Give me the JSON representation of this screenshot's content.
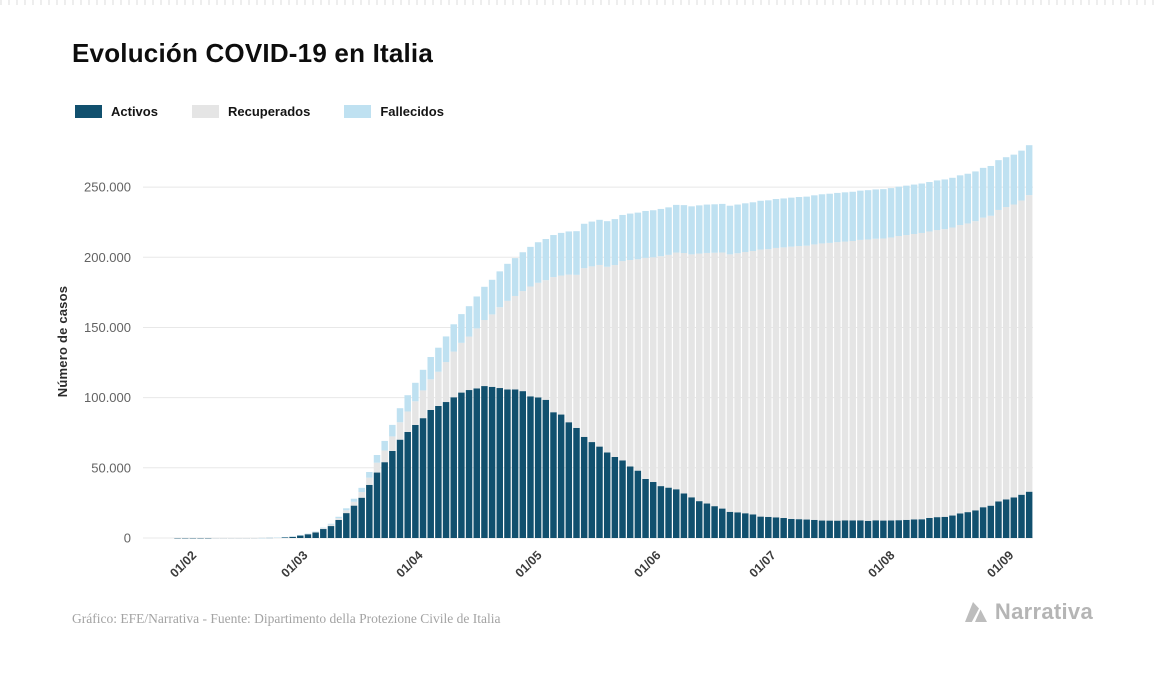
{
  "header": {
    "title": "Evolución COVID-19 en Italia"
  },
  "legend": [
    {
      "label": "Activos",
      "color": "#11506e"
    },
    {
      "label": "Recuperados",
      "color": "#e5e5e5"
    },
    {
      "label": "Fallecidos",
      "color": "#bfe1f1"
    }
  ],
  "footer": {
    "credit": "Gráfico: EFE/Narrativa - Fuente: Dipartimento della Protezione Civile de Italia",
    "brand": "Narrativa"
  },
  "chart_data": {
    "type": "bar",
    "stacked": true,
    "title": "Evolución COVID-19 en Italia",
    "xlabel": "",
    "ylabel": "Número de casos",
    "ylim": [
      0,
      280000
    ],
    "grid": true,
    "legend_position": "top-left",
    "yticks": [
      {
        "value": 0,
        "label": "0"
      },
      {
        "value": 50000,
        "label": "50.000"
      },
      {
        "value": 100000,
        "label": "100.000"
      },
      {
        "value": 150000,
        "label": "150.000"
      },
      {
        "value": 200000,
        "label": "200.000"
      },
      {
        "value": 250000,
        "label": "250.000"
      }
    ],
    "xticks": [
      {
        "label": "01/02",
        "pos": 5
      },
      {
        "label": "01/03",
        "pos": 19.5
      },
      {
        "label": "01/04",
        "pos": 34.5
      },
      {
        "label": "01/05",
        "pos": 50
      },
      {
        "label": "01/06",
        "pos": 65.5
      },
      {
        "label": "01/07",
        "pos": 80.5
      },
      {
        "label": "01/08",
        "pos": 96
      },
      {
        "label": "01/09",
        "pos": 111.5
      }
    ],
    "categories": [
      "22/01",
      "24/01",
      "26/01",
      "28/01",
      "30/01",
      "01/02",
      "03/02",
      "05/02",
      "07/02",
      "09/02",
      "11/02",
      "13/02",
      "15/02",
      "17/02",
      "19/02",
      "21/02",
      "23/02",
      "25/02",
      "27/02",
      "29/02",
      "02/03",
      "04/03",
      "06/03",
      "08/03",
      "10/03",
      "12/03",
      "14/03",
      "16/03",
      "18/03",
      "20/03",
      "22/03",
      "24/03",
      "26/03",
      "28/03",
      "30/03",
      "01/04",
      "03/04",
      "05/04",
      "07/04",
      "09/04",
      "11/04",
      "13/04",
      "15/04",
      "17/04",
      "19/04",
      "21/04",
      "23/04",
      "25/04",
      "27/04",
      "29/04",
      "01/05",
      "03/05",
      "05/05",
      "07/05",
      "09/05",
      "11/05",
      "13/05",
      "15/05",
      "17/05",
      "19/05",
      "21/05",
      "23/05",
      "25/05",
      "27/05",
      "29/05",
      "31/05",
      "02/06",
      "04/06",
      "06/06",
      "08/06",
      "10/06",
      "12/06",
      "14/06",
      "16/06",
      "18/06",
      "20/06",
      "22/06",
      "24/06",
      "26/06",
      "28/06",
      "30/06",
      "02/07",
      "04/07",
      "06/07",
      "08/07",
      "10/07",
      "12/07",
      "14/07",
      "16/07",
      "18/07",
      "20/07",
      "22/07",
      "24/07",
      "26/07",
      "28/07",
      "30/07",
      "01/08",
      "03/08",
      "05/08",
      "07/08",
      "09/08",
      "11/08",
      "13/08",
      "15/08",
      "17/08",
      "19/08",
      "21/08",
      "23/08",
      "25/08",
      "27/08",
      "29/08",
      "31/08",
      "02/09",
      "04/09",
      "06/09",
      "08/09"
    ],
    "series": [
      {
        "name": "Activos",
        "color": "#11506e",
        "values": [
          0,
          0,
          0,
          0,
          2,
          2,
          2,
          2,
          3,
          3,
          3,
          3,
          3,
          3,
          3,
          19,
          152,
          311,
          588,
          1049,
          1835,
          2706,
          3916,
          6387,
          8514,
          12839,
          17750,
          23073,
          28710,
          37860,
          46638,
          54030,
          62013,
          70065,
          75528,
          80572,
          85388,
          91246,
          94067,
          96877,
          100269,
          103616,
          105418,
          106607,
          108257,
          107709,
          106848,
          105847,
          105813,
          104657,
          100943,
          100179,
          98467,
          89624,
          87961,
          82488,
          78457,
          72070,
          68351,
          65129,
          60960,
          57752,
          55300,
          50966,
          47986,
          42075,
          39893,
          36976,
          35877,
          34730,
          31710,
          28997,
          26274,
          24569,
          22702,
          20972,
          18655,
          18303,
          17638,
          16836,
          15255,
          15060,
          14709,
          14242,
          13595,
          13428,
          13157,
          12919,
          12440,
          12404,
          12368,
          12609,
          12565,
          12581,
          12230,
          12616,
          12422,
          12474,
          12694,
          12924,
          13263,
          13368,
          14249,
          14867,
          15089,
          16014,
          17503,
          18438,
          19714,
          21932,
          23035,
          26078,
          27500,
          28915,
          30840,
          32993
        ]
      },
      {
        "name": "Recuperados",
        "color": "#e5e5e5",
        "values": [
          0,
          0,
          0,
          0,
          0,
          0,
          0,
          0,
          0,
          1,
          1,
          1,
          1,
          1,
          2,
          2,
          2,
          3,
          45,
          50,
          149,
          276,
          523,
          622,
          1004,
          1258,
          1966,
          2749,
          4025,
          5129,
          7024,
          8326,
          10361,
          12384,
          14620,
          16847,
          19758,
          21815,
          24392,
          28470,
          32534,
          35435,
          38092,
          42727,
          47055,
          51600,
          57576,
          63120,
          66624,
          71252,
          78249,
          81654,
          85231,
          96276,
          99023,
          105186,
          109039,
          120205,
          125176,
          129401,
          132282,
          136720,
          141981,
          147101,
          150604,
          157507,
          160092,
          163781,
          165837,
          168646,
          171338,
          173085,
          176370,
          178526,
          180544,
          182453,
          183426,
          184585,
          186111,
          187615,
          190248,
          190717,
          191944,
          192815,
          193978,
          194579,
          195106,
          196246,
          197431,
          197842,
          198446,
          198593,
          199031,
          199796,
          200460,
          200589,
          200976,
          201642,
          202461,
          202923,
          203326,
          203968,
          204142,
          204506,
          204960,
          205203,
          205470,
          205662,
          206015,
          206329,
          206554,
          207653,
          208300,
          208700,
          209600,
          211300
        ]
      },
      {
        "name": "Fallecidos",
        "color": "#bfe1f1",
        "values": [
          0,
          0,
          0,
          0,
          0,
          0,
          0,
          0,
          0,
          0,
          0,
          0,
          0,
          0,
          0,
          1,
          3,
          10,
          17,
          29,
          52,
          107,
          197,
          366,
          631,
          1016,
          1441,
          2158,
          2978,
          4032,
          5476,
          6820,
          8215,
          10023,
          11591,
          13155,
          14681,
          15887,
          17127,
          18279,
          19468,
          20465,
          21645,
          22745,
          23660,
          24648,
          25549,
          26384,
          26977,
          27682,
          28236,
          28884,
          29315,
          29958,
          30395,
          30739,
          31106,
          31610,
          31908,
          32169,
          32486,
          32735,
          32877,
          33072,
          33229,
          33415,
          33530,
          33689,
          33846,
          33964,
          34114,
          34223,
          34345,
          34448,
          34514,
          34610,
          34657,
          34675,
          34708,
          34738,
          34767,
          34818,
          34854,
          34869,
          34914,
          34938,
          34954,
          34984,
          35017,
          35042,
          35045,
          35073,
          35097,
          35107,
          35129,
          35132,
          35146,
          35166,
          35181,
          35187,
          35203,
          35215,
          35226,
          35392,
          35400,
          35412,
          35418,
          35430,
          35441,
          35445,
          35458,
          35483,
          35500,
          35518,
          35541,
          35570
        ]
      }
    ]
  }
}
